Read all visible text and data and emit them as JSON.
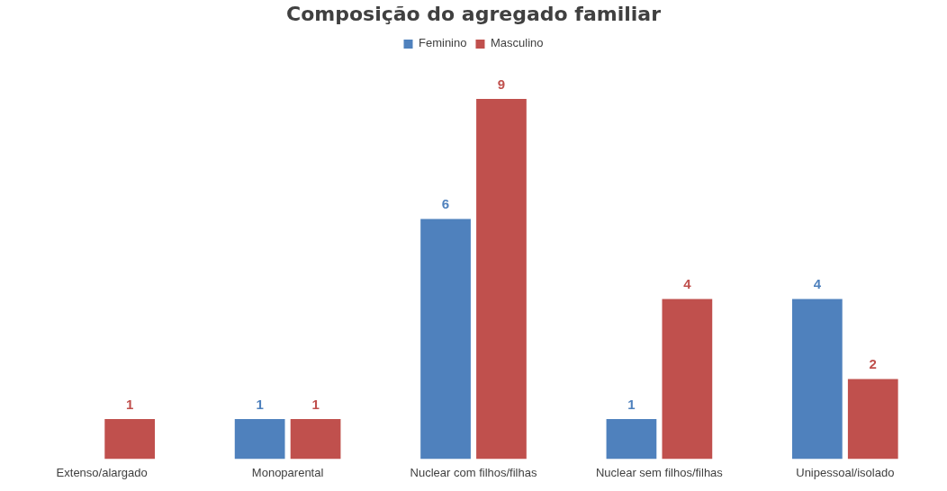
{
  "chart_data": {
    "type": "bar",
    "title": "Composição do agregado familiar",
    "categories": [
      "Extenso/alargado",
      "Monoparental",
      "Nuclear com filhos/filhas",
      "Nuclear sem filhos/filhas",
      "Unipessoal/isolado"
    ],
    "series": [
      {
        "name": "Feminino",
        "color": "#4f81bd",
        "values": [
          null,
          1,
          6,
          1,
          4
        ]
      },
      {
        "name": "Masculino",
        "color": "#c0504d",
        "values": [
          1,
          1,
          9,
          4,
          2
        ]
      }
    ],
    "data_labels": true,
    "legend": "top",
    "grid": false
  }
}
